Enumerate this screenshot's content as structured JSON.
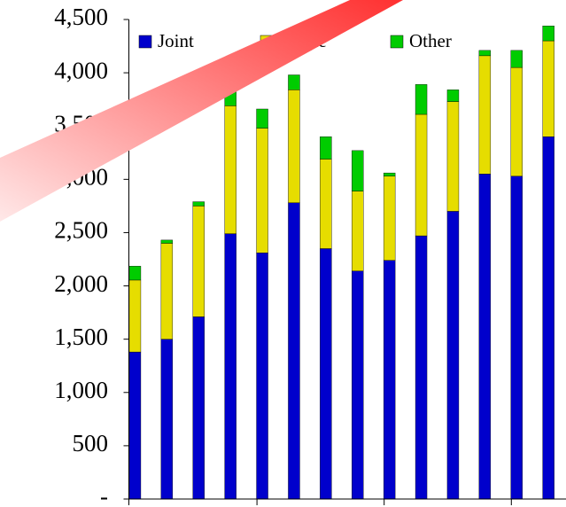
{
  "chart_data": {
    "type": "stacked_bar",
    "categories": [
      null,
      null,
      null,
      null,
      null,
      null,
      null,
      null,
      null,
      null,
      null,
      null,
      null,
      null
    ],
    "series": [
      {
        "name": "Joint",
        "color": "#0000cc",
        "values": [
          1380,
          1500,
          1710,
          2490,
          2310,
          2780,
          2350,
          2140,
          2240,
          2470,
          2700,
          3050,
          3030,
          3400
        ]
      },
      {
        "name": "Single",
        "color": "#e6dd00",
        "values": [
          675,
          900,
          1040,
          1200,
          1170,
          1060,
          840,
          750,
          790,
          1140,
          1030,
          1110,
          1020,
          900
        ]
      },
      {
        "name": "Other",
        "color": "#00cc00",
        "values": [
          130,
          30,
          40,
          150,
          180,
          140,
          210,
          380,
          30,
          280,
          110,
          50,
          160,
          140
        ]
      }
    ],
    "ylim": [
      0,
      4500
    ],
    "yticks": [
      {
        "value": 0,
        "label": "-"
      },
      500,
      {
        "value": 1000,
        "label": "1,000"
      },
      {
        "value": 1500,
        "label": "1,500"
      },
      {
        "value": 2000,
        "label": "2,000"
      },
      {
        "value": 2500,
        "label": "2,500"
      },
      {
        "value": 3000,
        "label": "3,000"
      },
      {
        "value": 3500,
        "label": "3,500"
      },
      {
        "value": 4000,
        "label": "4,000"
      },
      {
        "value": 4500,
        "label": "4,500"
      }
    ],
    "legend": "top"
  }
}
